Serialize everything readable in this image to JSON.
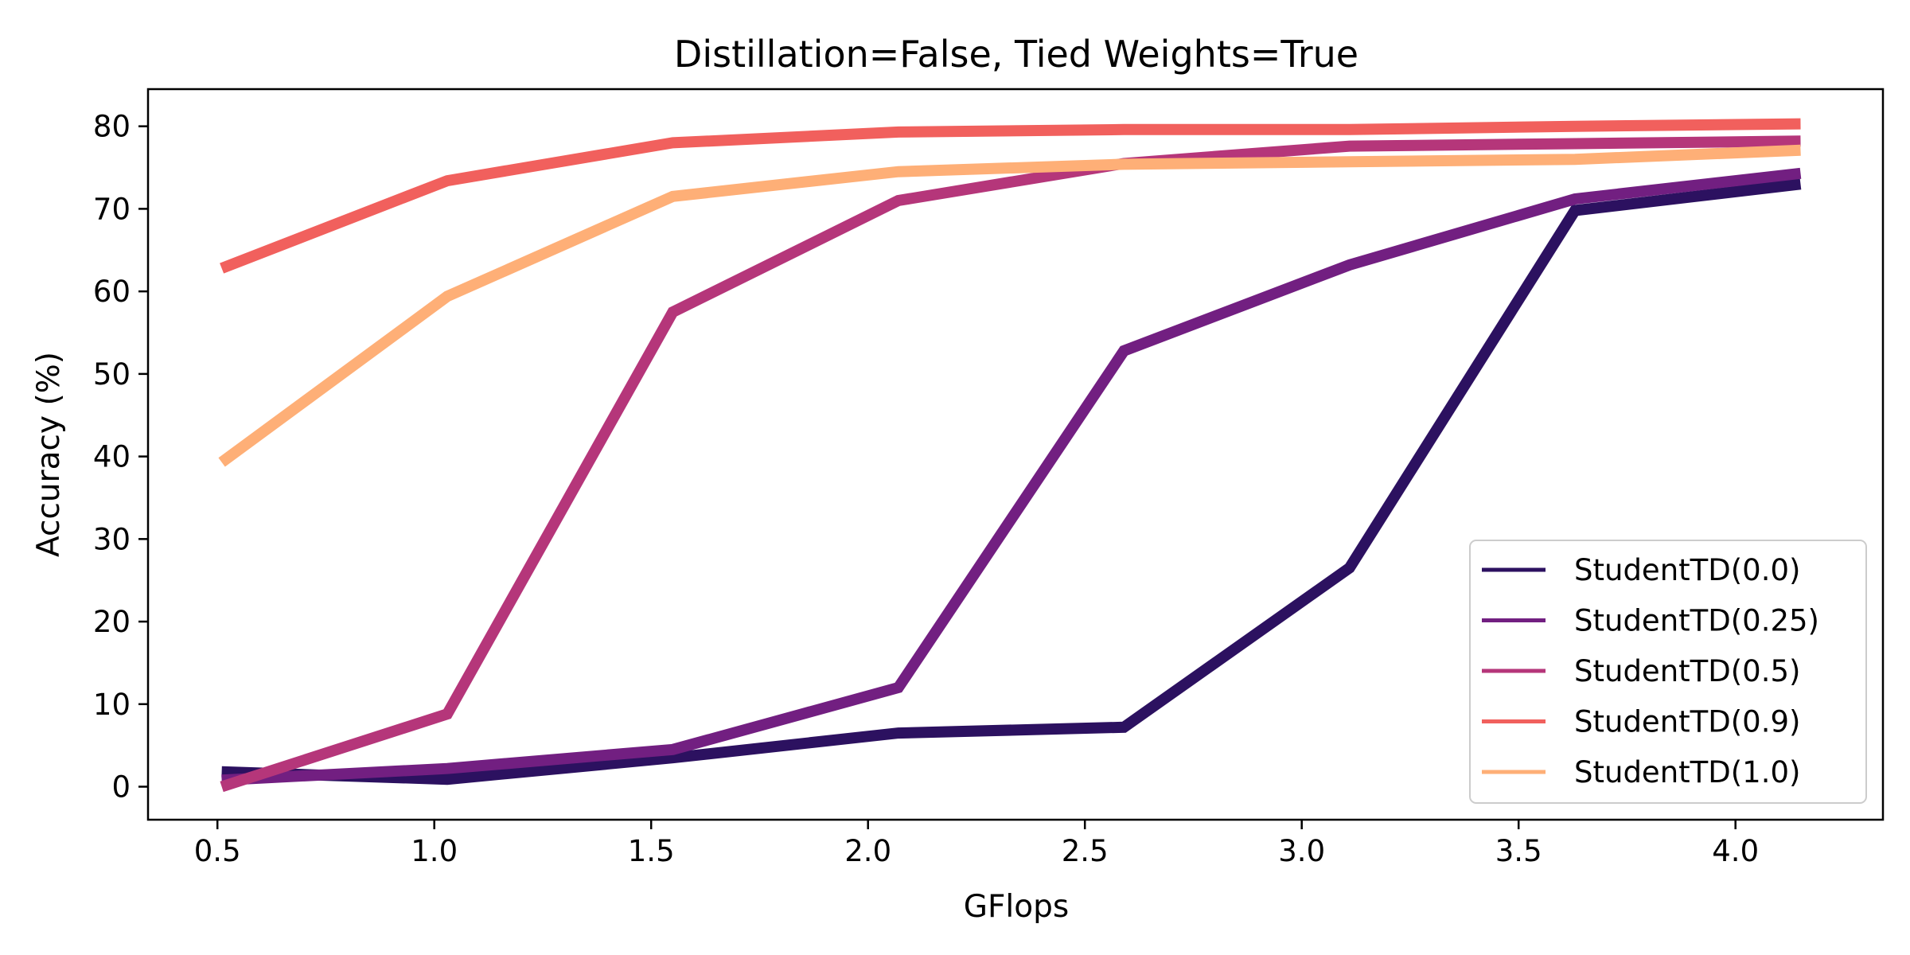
{
  "chart_data": {
    "type": "line",
    "title": "Distillation=False, Tied Weights=True",
    "xlabel": "GFlops",
    "ylabel": "Accuracy (%)",
    "xlim": [
      0.34,
      4.34
    ],
    "ylim": [
      -4,
      84.5
    ],
    "xticks": [
      0.5,
      1.0,
      1.5,
      2.0,
      2.5,
      3.0,
      3.5,
      4.0
    ],
    "xtick_labels": [
      "0.5",
      "1.0",
      "1.5",
      "2.0",
      "2.5",
      "3.0",
      "3.5",
      "4.0"
    ],
    "yticks": [
      0,
      10,
      20,
      30,
      40,
      50,
      60,
      70,
      80
    ],
    "ytick_labels": [
      "0",
      "10",
      "20",
      "30",
      "40",
      "50",
      "60",
      "70",
      "80"
    ],
    "grid": false,
    "legend_position": "lower-right",
    "x": [
      0.51,
      1.03,
      1.55,
      2.07,
      2.59,
      3.11,
      3.63,
      4.15
    ],
    "series": [
      {
        "name": "StudentTD(0.0)",
        "color": "#2c1160",
        "values": [
          1.8,
          0.9,
          3.5,
          6.5,
          7.2,
          26.5,
          69.8,
          73.0
        ]
      },
      {
        "name": "StudentTD(0.25)",
        "color": "#721f81",
        "values": [
          0.8,
          2.2,
          4.5,
          12.0,
          52.8,
          63.2,
          71.2,
          74.3
        ]
      },
      {
        "name": "StudentTD(0.5)",
        "color": "#b5367a",
        "values": [
          0.0,
          8.8,
          57.5,
          71.0,
          75.5,
          77.6,
          77.9,
          78.2
        ]
      },
      {
        "name": "StudentTD(0.9)",
        "color": "#f1605d",
        "values": [
          62.8,
          73.4,
          78.0,
          79.3,
          79.6,
          79.6,
          80.0,
          80.3
        ]
      },
      {
        "name": "StudentTD(1.0)",
        "color": "#feaf77",
        "values": [
          39.3,
          59.4,
          71.5,
          74.5,
          75.4,
          75.7,
          76.0,
          77.1
        ]
      }
    ]
  }
}
